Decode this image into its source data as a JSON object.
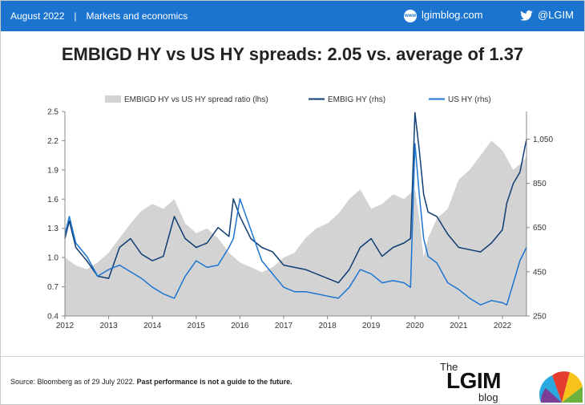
{
  "header": {
    "date": "August 2022",
    "separator": "|",
    "section": "Markets and economics",
    "site_icon": "globe-www-icon",
    "site": "lgimblog.com",
    "twitter_icon": "twitter-bird-icon",
    "twitter": "@LGIM",
    "bar_color": "#1b75d0"
  },
  "title": "EMBIGD HY vs US HY spreads: 2.05 vs. average of 1.37",
  "footer": {
    "source_prefix": "Source: Bloomberg as of 29 July 2022. ",
    "source_bold": "Past performance is not a guide to the future."
  },
  "logo": {
    "the": "The",
    "lgim": "LGIM",
    "blog": "blog",
    "icon": "umbrella-logo-icon"
  },
  "chart_data": {
    "type": "line",
    "grid": false,
    "legend_position": "top",
    "x_ticks": [
      "2012",
      "2013",
      "2014",
      "2015",
      "2016",
      "2017",
      "2018",
      "2019",
      "2020",
      "2021",
      "2022"
    ],
    "x_range": [
      2012.0,
      2022.55
    ],
    "y_left": {
      "range": [
        0.4,
        2.5
      ],
      "ticks": [
        "0.4",
        "0.7",
        "1.0",
        "1.3",
        "1.6",
        "1.9",
        "2.2",
        "2.5"
      ]
    },
    "y_right": {
      "range": [
        250,
        1175
      ],
      "ticks": [
        "250",
        "450",
        "650",
        "850",
        "1,050"
      ]
    },
    "series": [
      {
        "name": "EMBIGD HY vs US HY spread ratio (lhs)",
        "axis": "left",
        "style": "area",
        "color": "#d3d3d3",
        "x": [
          2012.0,
          2012.25,
          2012.5,
          2012.75,
          2013.0,
          2013.25,
          2013.5,
          2013.75,
          2014.0,
          2014.25,
          2014.5,
          2014.75,
          2015.0,
          2015.25,
          2015.5,
          2015.75,
          2016.0,
          2016.25,
          2016.5,
          2016.75,
          2017.0,
          2017.25,
          2017.5,
          2017.75,
          2018.0,
          2018.25,
          2018.5,
          2018.75,
          2019.0,
          2019.25,
          2019.5,
          2019.75,
          2020.0,
          2020.1,
          2020.2,
          2020.3,
          2020.5,
          2020.75,
          2021.0,
          2021.25,
          2021.5,
          2021.75,
          2022.0,
          2022.25,
          2022.5,
          2022.55
        ],
        "values": [
          1.0,
          0.92,
          0.88,
          0.95,
          1.05,
          1.2,
          1.35,
          1.48,
          1.55,
          1.5,
          1.6,
          1.35,
          1.25,
          1.3,
          1.2,
          1.05,
          0.95,
          0.9,
          0.85,
          0.9,
          1.0,
          1.05,
          1.2,
          1.3,
          1.35,
          1.45,
          1.6,
          1.7,
          1.5,
          1.55,
          1.65,
          1.6,
          1.7,
          1.4,
          1.0,
          1.2,
          1.4,
          1.5,
          1.8,
          1.9,
          2.05,
          2.2,
          2.1,
          1.9,
          2.0,
          2.05
        ]
      },
      {
        "name": "EMBIG HY (rhs)",
        "axis": "right",
        "style": "line",
        "color": "#0e3d73",
        "x": [
          2012.0,
          2012.1,
          2012.25,
          2012.5,
          2012.75,
          2013.0,
          2013.25,
          2013.5,
          2013.75,
          2014.0,
          2014.25,
          2014.5,
          2014.75,
          2015.0,
          2015.25,
          2015.5,
          2015.75,
          2015.85,
          2016.0,
          2016.25,
          2016.5,
          2016.75,
          2017.0,
          2017.25,
          2017.5,
          2017.75,
          2018.0,
          2018.25,
          2018.5,
          2018.75,
          2019.0,
          2019.25,
          2019.5,
          2019.75,
          2019.9,
          2020.0,
          2020.1,
          2020.2,
          2020.3,
          2020.5,
          2020.75,
          2021.0,
          2021.25,
          2021.5,
          2021.75,
          2022.0,
          2022.1,
          2022.25,
          2022.4,
          2022.55
        ],
        "values": [
          600,
          680,
          560,
          500,
          430,
          420,
          560,
          600,
          530,
          500,
          520,
          700,
          600,
          560,
          580,
          650,
          610,
          780,
          700,
          600,
          560,
          540,
          480,
          470,
          460,
          440,
          420,
          400,
          460,
          560,
          600,
          520,
          560,
          580,
          600,
          1170,
          1000,
          800,
          720,
          700,
          620,
          560,
          550,
          540,
          580,
          640,
          760,
          850,
          900,
          1050
        ]
      },
      {
        "name": "US HY (rhs)",
        "axis": "right",
        "style": "line",
        "color": "#1b75d0",
        "x": [
          2012.0,
          2012.1,
          2012.25,
          2012.5,
          2012.75,
          2013.0,
          2013.25,
          2013.5,
          2013.75,
          2014.0,
          2014.25,
          2014.5,
          2014.75,
          2015.0,
          2015.25,
          2015.5,
          2015.75,
          2015.85,
          2016.0,
          2016.25,
          2016.5,
          2016.75,
          2017.0,
          2017.25,
          2017.5,
          2017.75,
          2018.0,
          2018.25,
          2018.5,
          2018.75,
          2019.0,
          2019.25,
          2019.5,
          2019.75,
          2019.9,
          2020.0,
          2020.1,
          2020.2,
          2020.3,
          2020.5,
          2020.75,
          2021.0,
          2021.25,
          2021.5,
          2021.75,
          2022.0,
          2022.1,
          2022.25,
          2022.4,
          2022.55
        ],
        "values": [
          620,
          700,
          580,
          520,
          430,
          460,
          480,
          450,
          420,
          380,
          350,
          330,
          430,
          500,
          470,
          480,
          560,
          600,
          780,
          640,
          500,
          440,
          380,
          360,
          360,
          350,
          340,
          330,
          380,
          460,
          440,
          400,
          410,
          400,
          380,
          1030,
          800,
          600,
          520,
          490,
          400,
          370,
          330,
          300,
          320,
          310,
          300,
          400,
          500,
          560
        ]
      }
    ]
  }
}
